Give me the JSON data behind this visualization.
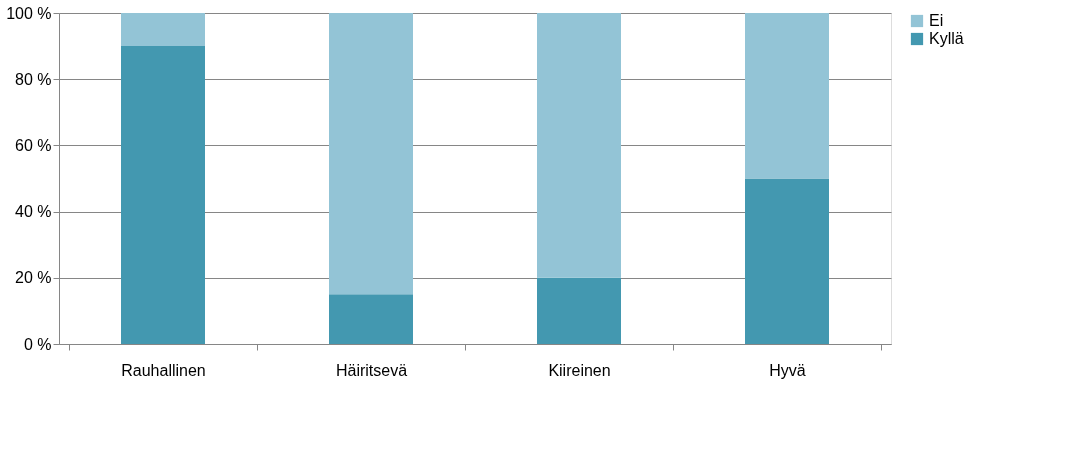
{
  "chart_data": {
    "type": "bar",
    "stacked": true,
    "categories": [
      "Rauhallinen",
      "Häiritsevä",
      "Kiireinen",
      "Hyvä"
    ],
    "series": [
      {
        "name": "Kyllä",
        "color": "#4398b0",
        "values": [
          90,
          15,
          20,
          50
        ]
      },
      {
        "name": "Ei",
        "color": "#93c4d6",
        "values": [
          10,
          85,
          80,
          50
        ]
      }
    ],
    "ylim": [
      0,
      100
    ],
    "yticks": [
      {
        "value": 0,
        "label": "0 %"
      },
      {
        "value": 20,
        "label": "20 %"
      },
      {
        "value": 40,
        "label": "40 %"
      },
      {
        "value": 60,
        "label": "60 %"
      },
      {
        "value": 80,
        "label": "80 %"
      },
      {
        "value": 100,
        "label": "100 %"
      }
    ],
    "grid": "y",
    "legend": "right"
  }
}
